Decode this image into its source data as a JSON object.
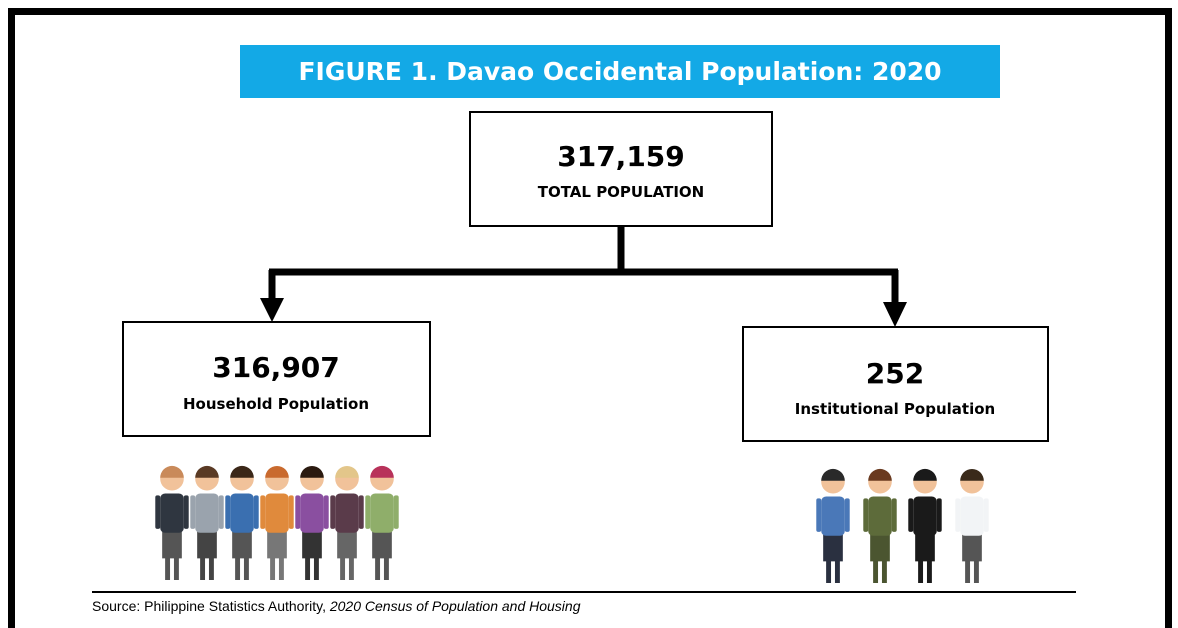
{
  "header": {
    "title": "FIGURE 1. Davao Occidental Population: 2020"
  },
  "nodes": [
    {
      "value": "317,159",
      "label": "TOTAL POPULATION"
    },
    {
      "value": "316,907",
      "label": "Household Population"
    },
    {
      "value": "252",
      "label": "Institutional Population"
    }
  ],
  "source": {
    "prefix": "Source: Philippine Statistics Authority,",
    "title": "2020 Census of Population and Housing"
  }
}
